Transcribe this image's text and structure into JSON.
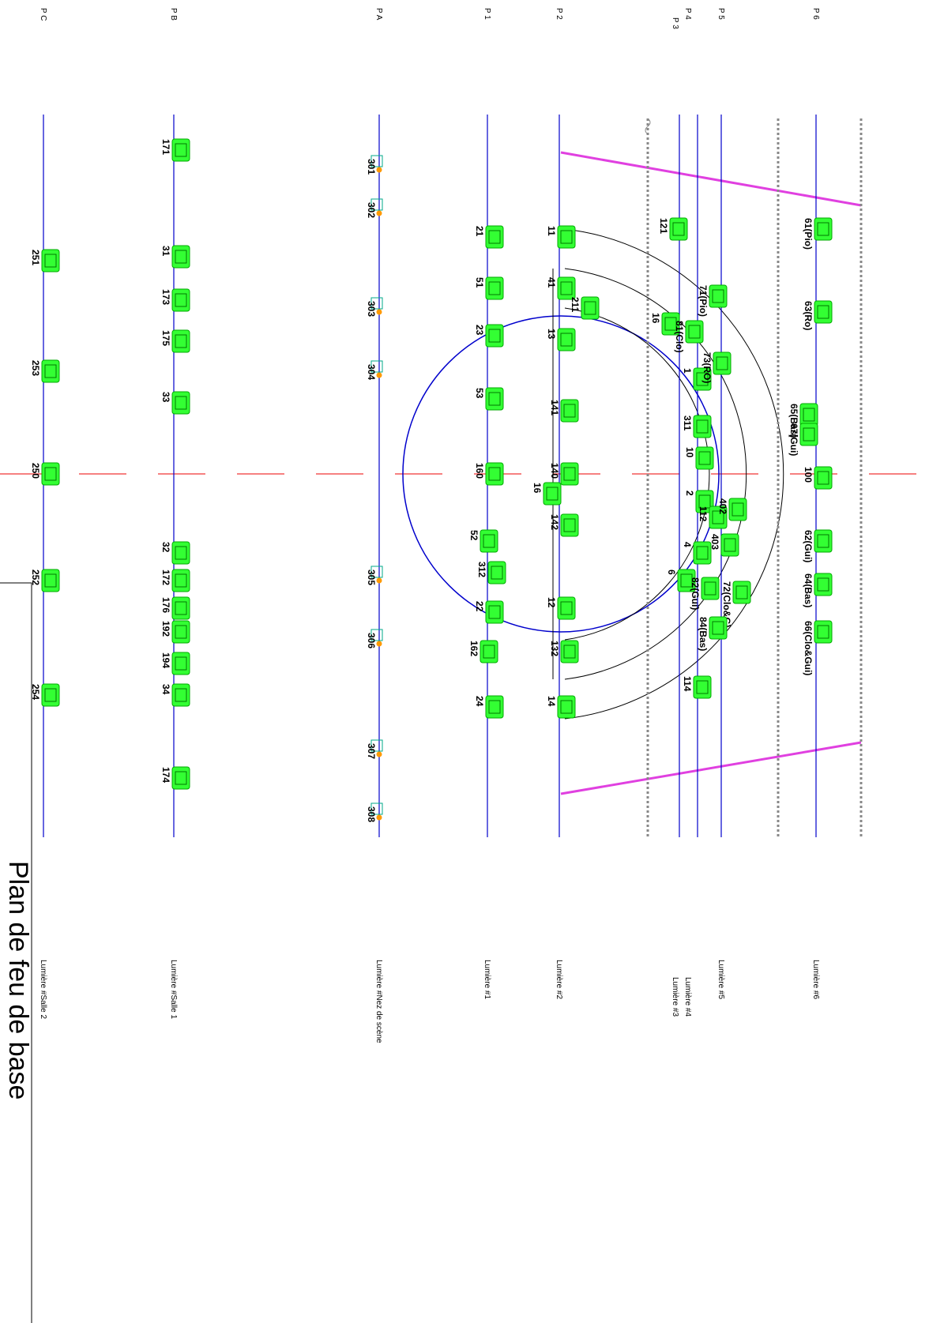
{
  "battens": [
    {
      "code": "P C",
      "label": "Lumière #Salle 2"
    },
    {
      "code": "P B",
      "label": "Lumière #Salle 1"
    },
    {
      "code": "P A",
      "label": "Lumière #Nez de scène"
    },
    {
      "code": "P 1",
      "label": "Lumière #1"
    },
    {
      "code": "P 2",
      "label": "Lumière #2"
    },
    {
      "code": "P 3",
      "label": "Lumière #3"
    },
    {
      "code": "P 4",
      "label": "Lumière #4"
    },
    {
      "code": "P 5",
      "label": "Lumière #5"
    },
    {
      "code": "P 6",
      "label": "Lumière #6"
    }
  ],
  "fixtures": [
    "251",
    "253",
    "250",
    "252",
    "254",
    "171",
    "31",
    "173",
    "175",
    "33",
    "32",
    "172",
    "176",
    "192",
    "194",
    "34",
    "174",
    "301",
    "302",
    "303",
    "304",
    "305",
    "306",
    "307",
    "308",
    "21",
    "51",
    "23",
    "53",
    "160",
    "52",
    "312",
    "22",
    "162",
    "24",
    "11",
    "41",
    "211",
    "13",
    "141",
    "140",
    "16",
    "142",
    "12",
    "132",
    "14",
    "121",
    "16",
    "1",
    "311",
    "10",
    "2",
    "112",
    "4",
    "402",
    "403",
    "6",
    "114",
    "71(Pio)",
    "81(Clo)",
    "73(RO)",
    "72(Clo&G)",
    "82(Gui)",
    "84(Bas)",
    "61(Pio)",
    "63(Ro)",
    "65(Bas)",
    "67(Gui)",
    "100",
    "62(Gui)",
    "64(Bas)",
    "66(Clo&Gui)"
  ],
  "title": "Plan de feu de base"
}
